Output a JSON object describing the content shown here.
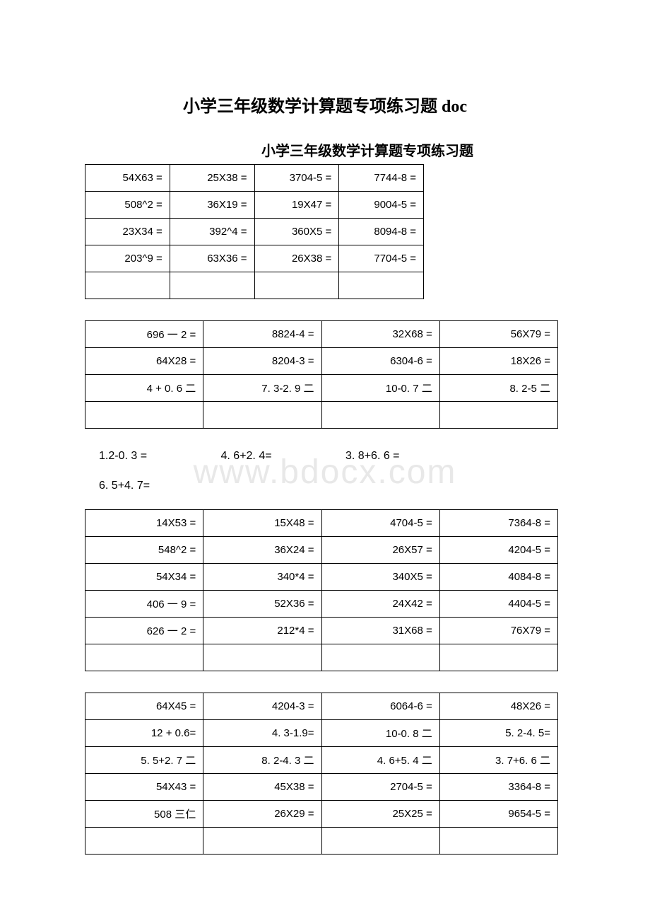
{
  "main_title": "小学三年级数学计算题专项练习题 doc",
  "sub_title": "小学三年级数学计算题专项练习题",
  "watermark_text": "www.bdocx.com",
  "table1": {
    "rows": [
      [
        "54X63 =",
        "25X38 =",
        "3704-5 =",
        "7744-8 ="
      ],
      [
        "508^2 =",
        "36X19 =",
        "19X47 =",
        "9004-5 ="
      ],
      [
        "23X34 =",
        "392^4 =",
        "360X5 =",
        "8094-8 ="
      ],
      [
        "203^9 =",
        "63X36 =",
        "26X38 =",
        "7704-5 ="
      ],
      [
        "",
        "",
        "",
        ""
      ]
    ]
  },
  "table2": {
    "rows": [
      [
        "696 一 2 =",
        "8824-4 =",
        "32X68 =",
        "56X79 ="
      ],
      [
        "64X28 =",
        "8204-3 =",
        "6304-6 =",
        "18X26 ="
      ],
      [
        "4 + 0. 6 二",
        "7. 3-2. 9 二",
        "10-0. 7 二",
        "8. 2-5 二"
      ],
      [
        "",
        "",
        "",
        ""
      ]
    ]
  },
  "inline1": {
    "items": [
      "1.2-0. 3 =",
      "4. 6+2. 4=",
      "3. 8+6. 6 ="
    ]
  },
  "inline2": {
    "items": [
      "6. 5+4. 7="
    ]
  },
  "table3": {
    "rows": [
      [
        "14X53 =",
        "15X48 =",
        "4704-5 =",
        "7364-8 ="
      ],
      [
        "548^2 =",
        "36X24 =",
        "26X57 =",
        "4204-5 ="
      ],
      [
        "54X34 =",
        "340*4 =",
        "340X5 =",
        "4084-8 ="
      ],
      [
        "406 一 9 =",
        "52X36 =",
        "24X42 =",
        "4404-5 ="
      ],
      [
        "626 一 2 =",
        "212*4 =",
        "31X68 =",
        "76X79 ="
      ],
      [
        "",
        "",
        "",
        ""
      ]
    ]
  },
  "table4": {
    "rows": [
      [
        "64X45 =",
        "4204-3 =",
        "6064-6 =",
        "48X26 ="
      ],
      [
        "12 + 0.6=",
        "4. 3-1.9=",
        "10-0. 8 二",
        "5. 2-4. 5="
      ],
      [
        "5. 5+2. 7 二",
        "8. 2-4. 3 二",
        "4. 6+5. 4 二",
        "3. 7+6. 6 二"
      ],
      [
        "54X43 =",
        "45X38 =",
        "2704-5 =",
        "3364-8 ="
      ],
      [
        "508 三仁",
        "26X29 =",
        "25X25 =",
        "9654-5 ="
      ],
      [
        "",
        "",
        "",
        ""
      ]
    ]
  },
  "colors": {
    "text": "#000000",
    "background": "#ffffff",
    "border": "#000000",
    "watermark": "#e8e8e8",
    "watermark_circle": "#f5e0c0"
  },
  "typography": {
    "main_title_fontsize": 24,
    "sub_title_fontsize": 20,
    "cell_fontsize": 15,
    "inline_fontsize": 16,
    "watermark_fontsize": 48
  }
}
